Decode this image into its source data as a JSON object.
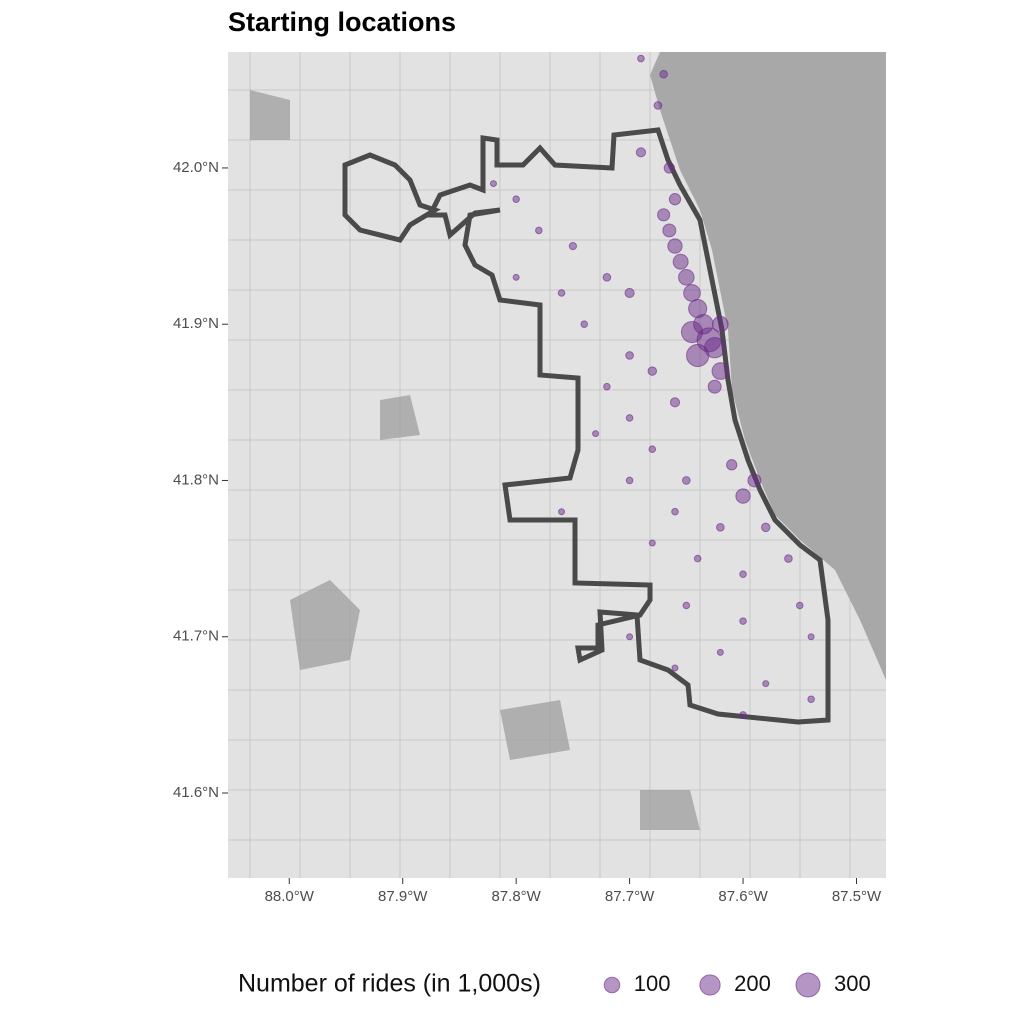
{
  "chart_data": {
    "type": "scatter",
    "title": "Starting locations",
    "xlim": [
      -88.054,
      -87.474
    ],
    "ylim": [
      41.5456,
      42.0742
    ],
    "xticks": [
      {
        "value": -88.0,
        "label": "88.0°W"
      },
      {
        "value": -87.9,
        "label": "87.9°W"
      },
      {
        "value": -87.8,
        "label": "87.8°W"
      },
      {
        "value": -87.7,
        "label": "87.7°W"
      },
      {
        "value": -87.6,
        "label": "87.6°W"
      },
      {
        "value": -87.5,
        "label": "87.5°W"
      }
    ],
    "yticks": [
      {
        "value": 41.6,
        "label": "41.6°N"
      },
      {
        "value": 41.7,
        "label": "41.7°N"
      },
      {
        "value": 41.8,
        "label": "41.8°N"
      },
      {
        "value": 41.9,
        "label": "41.9°N"
      },
      {
        "value": 42.0,
        "label": "42.0°N"
      }
    ],
    "color": "#6a2c8a",
    "x": [
      -87.63,
      -87.64,
      -87.625,
      -87.635,
      -87.64,
      -87.645,
      -87.65,
      -87.655,
      -87.66,
      -87.665,
      -87.67,
      -87.66,
      -87.665,
      -87.69,
      -87.62,
      -87.625,
      -87.6,
      -87.59,
      -87.61,
      -87.7,
      -87.72,
      -87.75,
      -87.78,
      -87.8,
      -87.82,
      -87.74,
      -87.7,
      -87.68,
      -87.72,
      -87.66,
      -87.7,
      -87.68,
      -87.65,
      -87.7,
      -87.66,
      -87.62,
      -87.58,
      -87.56,
      -87.6,
      -87.64,
      -87.68,
      -87.65,
      -87.6,
      -87.55,
      -87.62,
      -87.66,
      -87.58,
      -87.54,
      -87.54,
      -87.6,
      -87.7,
      -87.76,
      -87.73,
      -87.76,
      -87.8,
      -87.67,
      -87.675,
      -87.69,
      -87.645,
      -87.62
    ],
    "y": [
      41.89,
      41.88,
      41.885,
      41.9,
      41.91,
      41.92,
      41.93,
      41.94,
      41.95,
      41.96,
      41.97,
      41.98,
      42.0,
      42.01,
      41.87,
      41.86,
      41.79,
      41.8,
      41.81,
      41.92,
      41.93,
      41.95,
      41.96,
      41.98,
      41.99,
      41.9,
      41.88,
      41.87,
      41.86,
      41.85,
      41.84,
      41.82,
      41.8,
      41.8,
      41.78,
      41.77,
      41.77,
      41.75,
      41.74,
      41.75,
      41.76,
      41.72,
      41.71,
      41.72,
      41.69,
      41.68,
      41.67,
      41.66,
      41.7,
      41.65,
      41.7,
      41.78,
      41.83,
      41.92,
      41.93,
      42.06,
      42.04,
      42.07,
      41.895,
      41.9
    ],
    "sizes": [
      300,
      250,
      200,
      180,
      150,
      120,
      100,
      90,
      80,
      60,
      50,
      40,
      30,
      20,
      120,
      60,
      80,
      60,
      30,
      20,
      10,
      8,
      5,
      5,
      3,
      5,
      10,
      15,
      5,
      20,
      5,
      5,
      10,
      5,
      5,
      10,
      15,
      10,
      5,
      5,
      3,
      5,
      5,
      5,
      3,
      3,
      3,
      5,
      3,
      5,
      3,
      3,
      3,
      5,
      3,
      10,
      10,
      5,
      220,
      100
    ],
    "legend": {
      "title": "Number of rides (in 1,000s)",
      "sizes": [
        100,
        200,
        300
      ]
    }
  }
}
